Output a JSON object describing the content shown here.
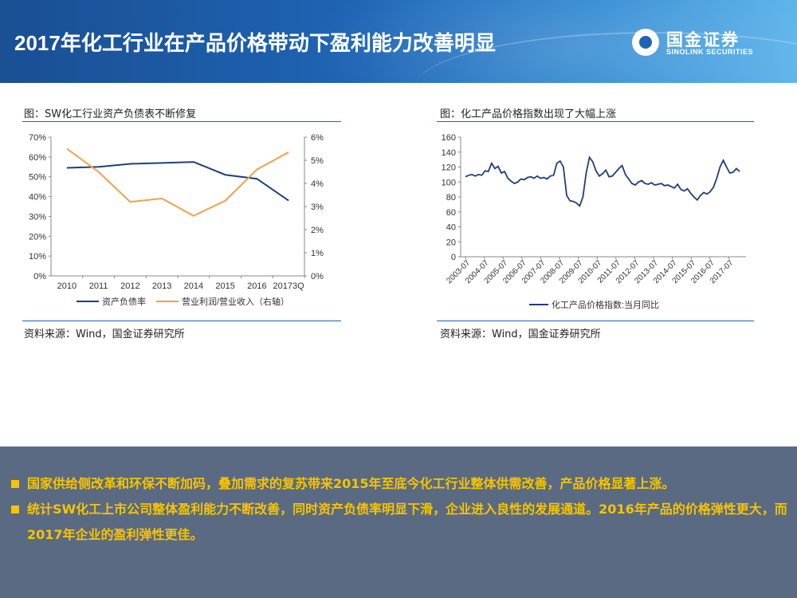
{
  "header": {
    "title": "2017年化工行业在产品价格带动下盈利能力改善明显",
    "logo_cn": "国金证券",
    "logo_en": "SINOLINK SECURITIES"
  },
  "left_panel": {
    "caption": "图：SW化工行业资产负债表不断修复",
    "source": "资料来源：Wind，国金证券研究所"
  },
  "right_panel": {
    "caption": "图：化工产品价格指数出现了大幅上涨",
    "source": "资料来源：Wind，国金证券研究所"
  },
  "bullets": [
    "国家供给侧改革和环保不断加码，叠加需求的复苏带来2015年至底今化工行业整体供需改善，产品价格显著上涨。",
    "统计SW化工上市公司整体盈利能力不断改善，同时资产负债率明显下滑，企业进入良性的发展通道。2016年产品的价格弹性更大，而2017年企业的盈利弹性更佳。"
  ],
  "colors": {
    "series_blue": "#1f3e7a",
    "series_orange": "#f0a04b",
    "bullet": "#f6c400",
    "footer_bg": "#5a6a82"
  },
  "chart_data": [
    {
      "type": "line",
      "title": "SW化工行业资产负债表不断修复",
      "categories": [
        "2010",
        "2011",
        "2012",
        "2013",
        "2014",
        "2015",
        "2016",
        "20173Q"
      ],
      "ylim": [
        0,
        70
      ],
      "yticks": [
        "0%",
        "10%",
        "20%",
        "30%",
        "40%",
        "50%",
        "60%",
        "70%"
      ],
      "ylim_right": [
        0,
        6
      ],
      "yticks_right": [
        "0%",
        "1%",
        "2%",
        "3%",
        "4%",
        "5%",
        "6%"
      ],
      "series": [
        {
          "name": "资产负债率",
          "axis": "left",
          "values": [
            54.5,
            55,
            56.5,
            57,
            57.5,
            51,
            49,
            38
          ]
        },
        {
          "name": "营业利润/营业收入（右轴）",
          "axis": "right",
          "values": [
            5.5,
            4.5,
            3.2,
            3.35,
            2.6,
            3.25,
            4.6,
            5.35
          ]
        }
      ]
    },
    {
      "type": "line",
      "title": "化工产品价格指数出现了大幅上涨",
      "x_ticks": [
        "2003-07",
        "2004-07",
        "2005-07",
        "2006-07",
        "2007-07",
        "2008-07",
        "2009-07",
        "2010-07",
        "2011-07",
        "2012-07",
        "2013-07",
        "2014-07",
        "2015-07",
        "2016-07",
        "2017-07"
      ],
      "ylim": [
        0,
        160
      ],
      "yticks": [
        "0",
        "20",
        "40",
        "60",
        "80",
        "100",
        "120",
        "140",
        "160"
      ],
      "series": [
        {
          "name": "化工产品价格指数:当月同比",
          "values": [
            107,
            109,
            110,
            108,
            110,
            109,
            115,
            114,
            125,
            118,
            121,
            112,
            114,
            105,
            101,
            98,
            100,
            104,
            103,
            106,
            107,
            105,
            108,
            105,
            106,
            104,
            108,
            109,
            125,
            128,
            120,
            82,
            75,
            74,
            72,
            68,
            80,
            112,
            133,
            127,
            115,
            108,
            111,
            116,
            107,
            108,
            113,
            118,
            122,
            110,
            104,
            98,
            96,
            100,
            102,
            98,
            97,
            99,
            96,
            97,
            98,
            95,
            96,
            94,
            92,
            97,
            90,
            88,
            91,
            85,
            80,
            76,
            82,
            86,
            84,
            87,
            93,
            105,
            120,
            129,
            120,
            112,
            113,
            118,
            114
          ]
        }
      ]
    }
  ]
}
